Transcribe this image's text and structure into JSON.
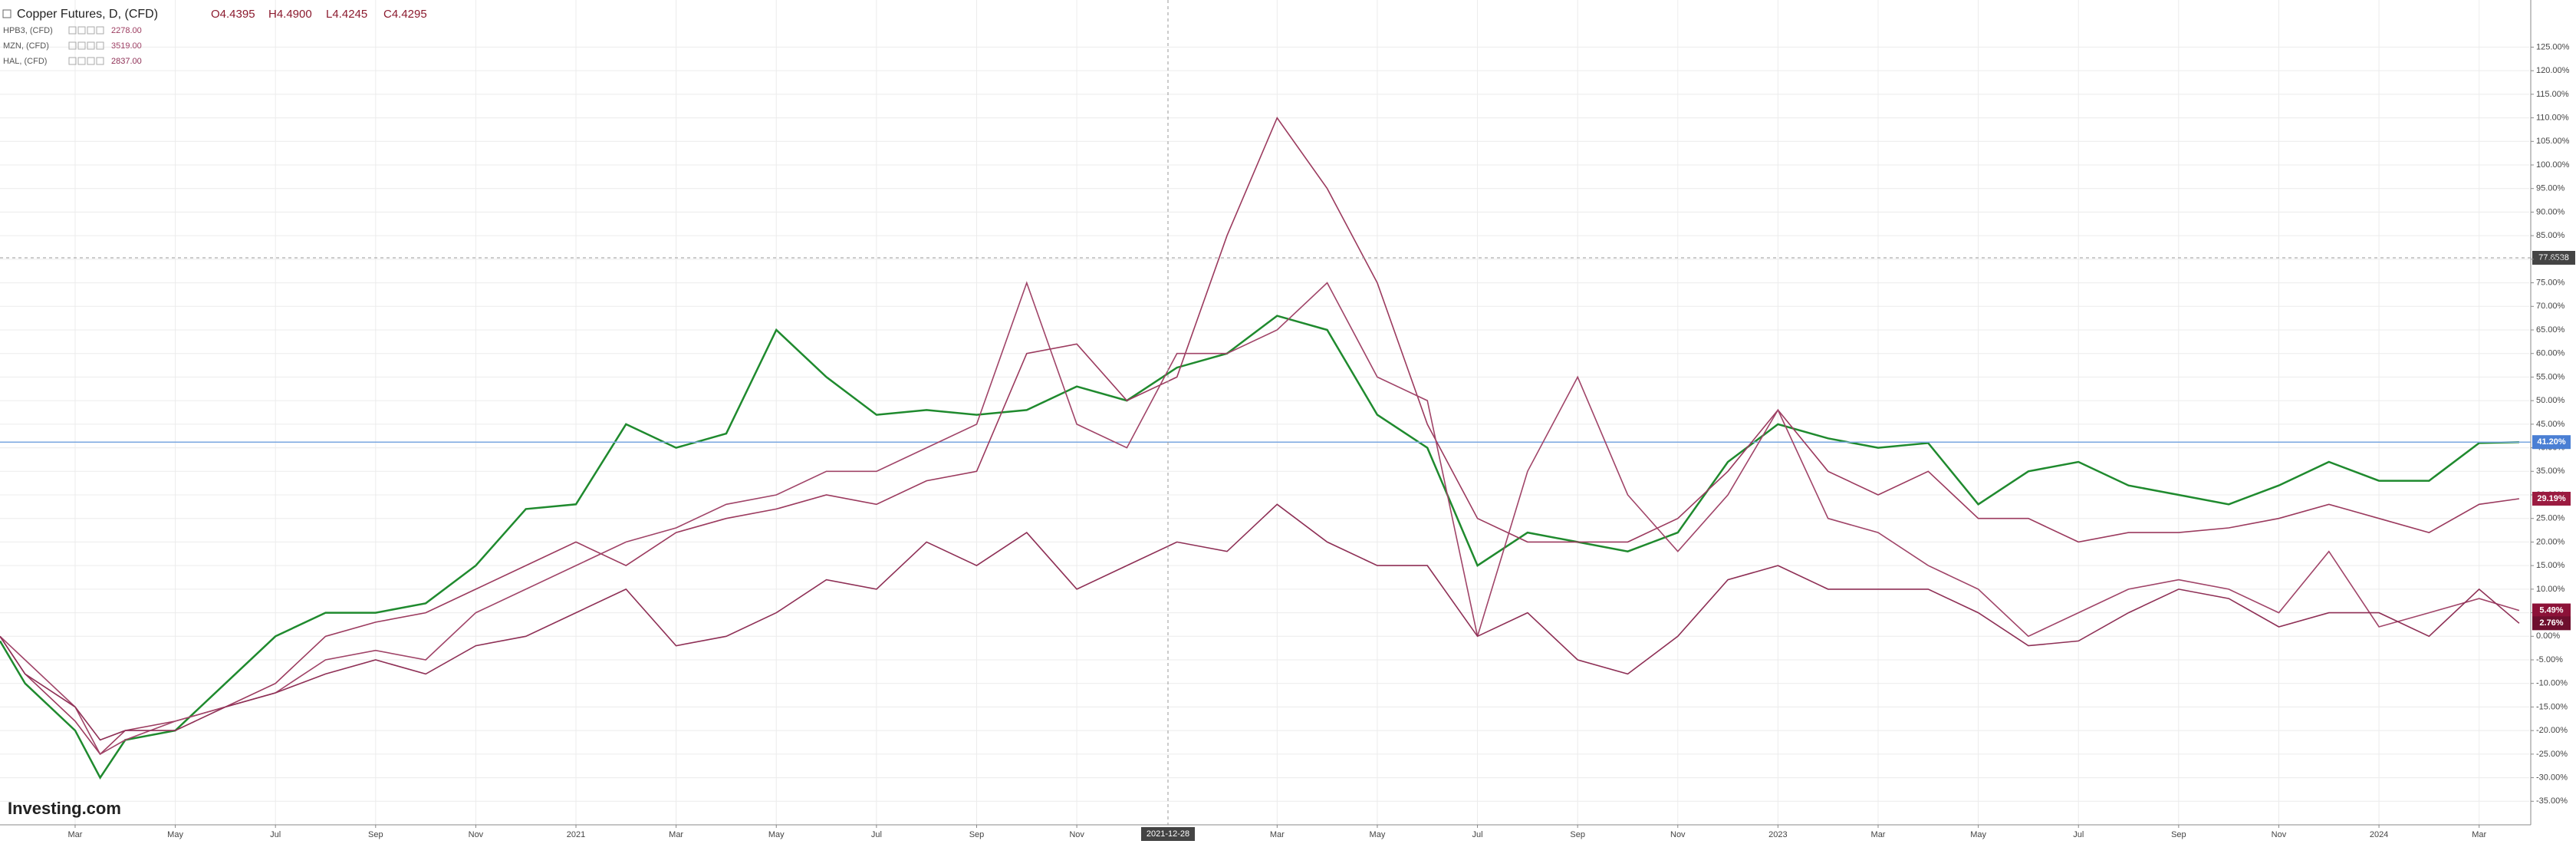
{
  "chart_data": {
    "type": "line",
    "title": "Copper Futures, D, (CFD)",
    "ohlc": [
      "O4.4395",
      "H4.4900",
      "L4.4245",
      "C4.4295"
    ],
    "x": [
      -1.5,
      -1,
      0,
      0.5,
      1,
      2,
      3,
      4,
      5,
      6,
      7,
      8,
      9,
      10,
      11,
      12,
      13,
      14,
      15,
      16,
      17,
      18,
      19,
      20,
      21,
      22,
      23,
      24,
      25,
      26,
      27,
      28,
      29,
      30,
      31,
      32,
      33,
      34,
      35,
      36,
      37,
      38,
      39,
      40,
      41,
      42,
      43,
      44,
      45,
      46,
      47,
      48,
      48.8
    ],
    "series": [
      {
        "name": "Copper Futures",
        "color": "#1f8a2e",
        "end_label": "41.20%",
        "label_color": "#4a7fd4",
        "values": [
          -1,
          -10,
          -20,
          -30,
          -22,
          -20,
          -10,
          0,
          5,
          5,
          7,
          15,
          27,
          28,
          45,
          40,
          43,
          65,
          55,
          47,
          48,
          47,
          48,
          53,
          50,
          57,
          60,
          68,
          65,
          47,
          40,
          15,
          22,
          20,
          18,
          22,
          37,
          45,
          42,
          40,
          41,
          28,
          35,
          37,
          32,
          30,
          28,
          32,
          37,
          33,
          33,
          41,
          41.2
        ]
      },
      {
        "name": "HPB3, (CFD)",
        "price": "2278.00",
        "color": "#9b3a5e",
        "end_label": "29.19%",
        "label_color": "#9b1b40",
        "values": [
          0,
          -8,
          -18,
          -25,
          -20,
          -18,
          -15,
          -10,
          0,
          3,
          5,
          10,
          15,
          20,
          15,
          22,
          25,
          27,
          30,
          28,
          33,
          35,
          60,
          62,
          50,
          55,
          85,
          110,
          95,
          75,
          45,
          25,
          20,
          20,
          20,
          25,
          35,
          48,
          35,
          30,
          35,
          25,
          25,
          20,
          22,
          22,
          23,
          25,
          28,
          25,
          22,
          28,
          29.19
        ]
      },
      {
        "name": "MZN, (CFD)",
        "price": "3519.00",
        "color": "#a04468",
        "end_label": "5.49%",
        "label_color": "#8c1238",
        "values": [
          0,
          -5,
          -15,
          -25,
          -22,
          -18,
          -15,
          -12,
          -5,
          -3,
          -5,
          5,
          10,
          15,
          20,
          23,
          28,
          30,
          35,
          35,
          40,
          45,
          75,
          45,
          40,
          60,
          60,
          65,
          75,
          55,
          50,
          0,
          35,
          55,
          30,
          18,
          30,
          48,
          25,
          22,
          15,
          10,
          0,
          5,
          10,
          12,
          10,
          5,
          18,
          2,
          5,
          8,
          5.49
        ]
      },
      {
        "name": "HAL, (CFD)",
        "price": "2837.00",
        "color": "#8e2f55",
        "end_label": "2.76%",
        "label_color": "#6e0f2e",
        "values": [
          0,
          -8,
          -15,
          -22,
          -20,
          -20,
          -15,
          -12,
          -8,
          -5,
          -8,
          -2,
          0,
          5,
          10,
          -2,
          0,
          5,
          12,
          10,
          20,
          15,
          22,
          10,
          15,
          20,
          18,
          28,
          20,
          15,
          15,
          0,
          5,
          -5,
          -8,
          0,
          12,
          15,
          10,
          10,
          10,
          5,
          -2,
          -1,
          5,
          10,
          8,
          2,
          5,
          5,
          0,
          10,
          2.76
        ]
      }
    ],
    "xlim": [
      -1.5,
      49
    ],
    "xticks": [
      {
        "value": 0,
        "label": "Mar"
      },
      {
        "value": 2,
        "label": "May"
      },
      {
        "value": 4,
        "label": "Jul"
      },
      {
        "value": 6,
        "label": "Sep"
      },
      {
        "value": 8,
        "label": "Nov"
      },
      {
        "value": 10,
        "label": "2021"
      },
      {
        "value": 12,
        "label": "Mar"
      },
      {
        "value": 14,
        "label": "May"
      },
      {
        "value": 16,
        "label": "Jul"
      },
      {
        "value": 18,
        "label": "Sep"
      },
      {
        "value": 20,
        "label": "Nov"
      },
      {
        "value": 24,
        "label": "Mar"
      },
      {
        "value": 26,
        "label": "May"
      },
      {
        "value": 28,
        "label": "Jul"
      },
      {
        "value": 30,
        "label": "Sep"
      },
      {
        "value": 32,
        "label": "Nov"
      },
      {
        "value": 34,
        "label": "2023"
      },
      {
        "value": 36,
        "label": "Mar"
      },
      {
        "value": 38,
        "label": "May"
      },
      {
        "value": 40,
        "label": "Jul"
      },
      {
        "value": 42,
        "label": "Sep"
      },
      {
        "value": 44,
        "label": "Nov"
      },
      {
        "value": 46,
        "label": "2024"
      },
      {
        "value": 48,
        "label": "Mar"
      }
    ],
    "ylim": [
      -40,
      135
    ],
    "yticks": [
      {
        "value": -35,
        "label": "-35.00%"
      },
      {
        "value": -30,
        "label": "-30.00%"
      },
      {
        "value": -25,
        "label": "-25.00%"
      },
      {
        "value": -20,
        "label": "-20.00%"
      },
      {
        "value": -15,
        "label": "-15.00%"
      },
      {
        "value": -10,
        "label": "-10.00%"
      },
      {
        "value": -5,
        "label": "-5.00%"
      },
      {
        "value": 0,
        "label": "0.00%"
      },
      {
        "value": 5,
        "label": "5.00%"
      },
      {
        "value": 10,
        "label": "10.00%"
      },
      {
        "value": 15,
        "label": "15.00%"
      },
      {
        "value": 20,
        "label": "20.00%"
      },
      {
        "value": 25,
        "label": "25.00%"
      },
      {
        "value": 30,
        "label": "30.00%"
      },
      {
        "value": 35,
        "label": "35.00%"
      },
      {
        "value": 40,
        "label": "40.00%"
      },
      {
        "value": 45,
        "label": "45.00%"
      },
      {
        "value": 50,
        "label": "50.00%"
      },
      {
        "value": 55,
        "label": "55.00%"
      },
      {
        "value": 60,
        "label": "60.00%"
      },
      {
        "value": 65,
        "label": "65.00%"
      },
      {
        "value": 70,
        "label": "70.00%"
      },
      {
        "value": 75,
        "label": "75.00%"
      },
      {
        "value": 80,
        "label": "80.00%"
      },
      {
        "value": 85,
        "label": "85.00%"
      },
      {
        "value": 90,
        "label": "90.00%"
      },
      {
        "value": 95,
        "label": "95.00%"
      },
      {
        "value": 100,
        "label": "100.00%"
      },
      {
        "value": 105,
        "label": "105.00%"
      },
      {
        "value": 110,
        "label": "110.00%"
      },
      {
        "value": 115,
        "label": "115.00%"
      },
      {
        "value": 120,
        "label": "120.00%"
      },
      {
        "value": 125,
        "label": "125.00%"
      }
    ],
    "grid": true,
    "crosshair": {
      "x_label": "2021-12-28",
      "y_label": "77.6538"
    },
    "logo": "Investing.com"
  }
}
